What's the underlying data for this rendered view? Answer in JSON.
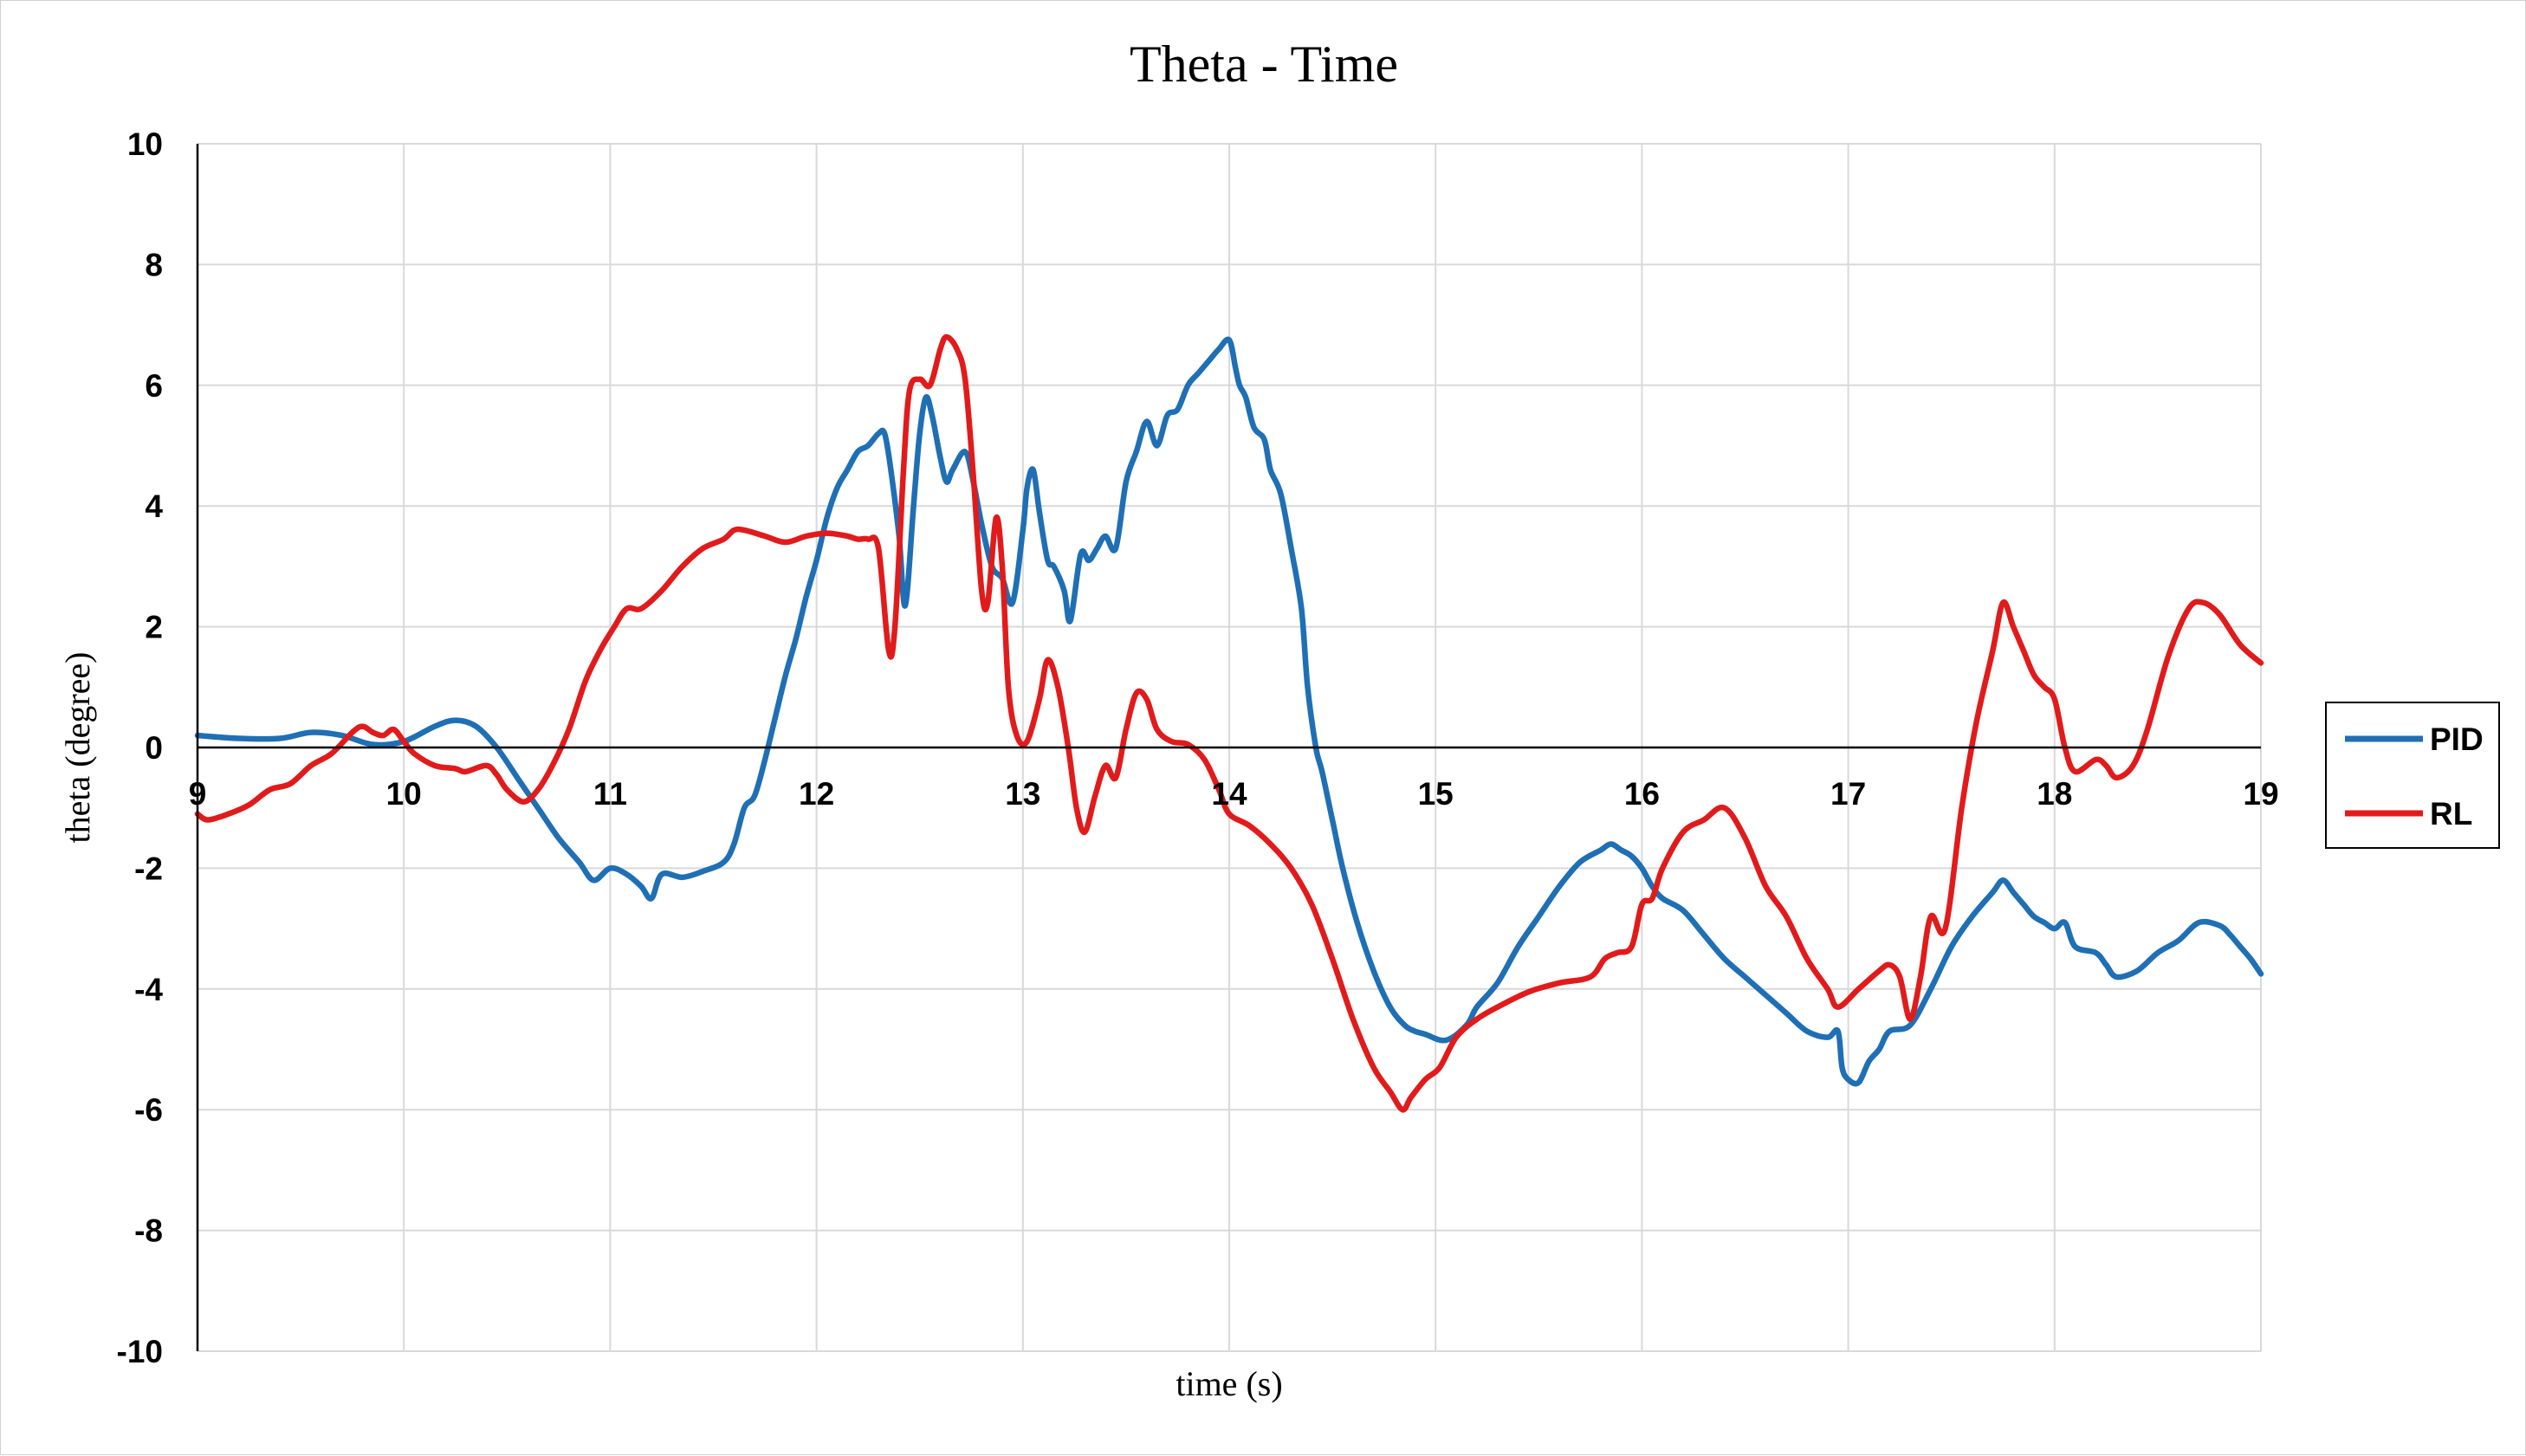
{
  "chart_data": {
    "type": "line",
    "title": "Theta - Time",
    "xlabel": "time (s)",
    "ylabel": "theta (degree)",
    "xlim": [
      9,
      19
    ],
    "ylim": [
      -10,
      10
    ],
    "x_ticks": [
      "9",
      "10",
      "11",
      "12",
      "13",
      "14",
      "15",
      "16",
      "17",
      "18",
      "19"
    ],
    "y_ticks": [
      "10",
      "8",
      "6",
      "4",
      "2",
      "0",
      "-2",
      "-4",
      "-6",
      "-8",
      "-10"
    ],
    "grid": true,
    "legend_position": "right",
    "series": [
      {
        "name": "PID",
        "color": "#1f6fb5",
        "points": [
          [
            9.0,
            0.2
          ],
          [
            9.2,
            0.15
          ],
          [
            9.4,
            0.15
          ],
          [
            9.55,
            0.25
          ],
          [
            9.7,
            0.2
          ],
          [
            9.85,
            0.05
          ],
          [
            10.0,
            0.1
          ],
          [
            10.15,
            0.35
          ],
          [
            10.25,
            0.45
          ],
          [
            10.35,
            0.35
          ],
          [
            10.45,
            0.0
          ],
          [
            10.55,
            -0.5
          ],
          [
            10.65,
            -1.0
          ],
          [
            10.75,
            -1.5
          ],
          [
            10.85,
            -1.9
          ],
          [
            10.92,
            -2.2
          ],
          [
            11.0,
            -2.0
          ],
          [
            11.08,
            -2.1
          ],
          [
            11.15,
            -2.3
          ],
          [
            11.2,
            -2.5
          ],
          [
            11.25,
            -2.1
          ],
          [
            11.35,
            -2.15
          ],
          [
            11.45,
            -2.05
          ],
          [
            11.55,
            -1.9
          ],
          [
            11.6,
            -1.6
          ],
          [
            11.65,
            -1.0
          ],
          [
            11.7,
            -0.8
          ],
          [
            11.75,
            -0.2
          ],
          [
            11.8,
            0.5
          ],
          [
            11.85,
            1.2
          ],
          [
            11.9,
            1.8
          ],
          [
            11.95,
            2.5
          ],
          [
            12.0,
            3.1
          ],
          [
            12.05,
            3.8
          ],
          [
            12.1,
            4.3
          ],
          [
            12.15,
            4.6
          ],
          [
            12.2,
            4.9
          ],
          [
            12.25,
            5.0
          ],
          [
            12.3,
            5.2
          ],
          [
            12.33,
            5.2
          ],
          [
            12.36,
            4.6
          ],
          [
            12.4,
            3.5
          ],
          [
            12.43,
            2.35
          ],
          [
            12.47,
            4.0
          ],
          [
            12.5,
            5.2
          ],
          [
            12.53,
            5.8
          ],
          [
            12.56,
            5.5
          ],
          [
            12.6,
            4.8
          ],
          [
            12.63,
            4.4
          ],
          [
            12.66,
            4.6
          ],
          [
            12.72,
            4.9
          ],
          [
            12.76,
            4.4
          ],
          [
            12.8,
            3.7
          ],
          [
            12.85,
            3.0
          ],
          [
            12.9,
            2.8
          ],
          [
            12.95,
            2.4
          ],
          [
            13.0,
            3.6
          ],
          [
            13.02,
            4.3
          ],
          [
            13.05,
            4.6
          ],
          [
            13.08,
            3.9
          ],
          [
            13.12,
            3.1
          ],
          [
            13.15,
            3.0
          ],
          [
            13.2,
            2.6
          ],
          [
            13.23,
            2.1
          ],
          [
            13.28,
            3.2
          ],
          [
            13.32,
            3.1
          ],
          [
            13.36,
            3.3
          ],
          [
            13.4,
            3.5
          ],
          [
            13.45,
            3.3
          ],
          [
            13.5,
            4.4
          ],
          [
            13.55,
            4.9
          ],
          [
            13.6,
            5.4
          ],
          [
            13.65,
            5.0
          ],
          [
            13.7,
            5.5
          ],
          [
            13.75,
            5.6
          ],
          [
            13.8,
            6.0
          ],
          [
            13.85,
            6.2
          ],
          [
            13.9,
            6.4
          ],
          [
            13.95,
            6.6
          ],
          [
            14.0,
            6.75
          ],
          [
            14.03,
            6.3
          ],
          [
            14.05,
            6.0
          ],
          [
            14.08,
            5.8
          ],
          [
            14.12,
            5.3
          ],
          [
            14.17,
            5.1
          ],
          [
            14.2,
            4.6
          ],
          [
            14.25,
            4.2
          ],
          [
            14.3,
            3.3
          ],
          [
            14.35,
            2.3
          ],
          [
            14.38,
            1.0
          ],
          [
            14.42,
            0.0
          ],
          [
            14.45,
            -0.4
          ],
          [
            14.5,
            -1.2
          ],
          [
            14.55,
            -2.0
          ],
          [
            14.62,
            -2.9
          ],
          [
            14.7,
            -3.7
          ],
          [
            14.78,
            -4.3
          ],
          [
            14.85,
            -4.6
          ],
          [
            14.9,
            -4.7
          ],
          [
            14.95,
            -4.75
          ],
          [
            15.05,
            -4.85
          ],
          [
            15.15,
            -4.6
          ],
          [
            15.2,
            -4.3
          ],
          [
            15.3,
            -3.9
          ],
          [
            15.4,
            -3.3
          ],
          [
            15.5,
            -2.8
          ],
          [
            15.6,
            -2.3
          ],
          [
            15.7,
            -1.9
          ],
          [
            15.8,
            -1.7
          ],
          [
            15.85,
            -1.6
          ],
          [
            15.9,
            -1.7
          ],
          [
            15.95,
            -1.8
          ],
          [
            16.0,
            -2.0
          ],
          [
            16.05,
            -2.3
          ],
          [
            16.1,
            -2.5
          ],
          [
            16.2,
            -2.7
          ],
          [
            16.3,
            -3.1
          ],
          [
            16.4,
            -3.5
          ],
          [
            16.5,
            -3.8
          ],
          [
            16.6,
            -4.1
          ],
          [
            16.7,
            -4.4
          ],
          [
            16.8,
            -4.7
          ],
          [
            16.9,
            -4.8
          ],
          [
            16.95,
            -4.7
          ],
          [
            16.97,
            -5.3
          ],
          [
            17.0,
            -5.5
          ],
          [
            17.05,
            -5.55
          ],
          [
            17.1,
            -5.2
          ],
          [
            17.15,
            -5.0
          ],
          [
            17.2,
            -4.7
          ],
          [
            17.3,
            -4.6
          ],
          [
            17.4,
            -4.0
          ],
          [
            17.5,
            -3.3
          ],
          [
            17.6,
            -2.8
          ],
          [
            17.7,
            -2.4
          ],
          [
            17.75,
            -2.2
          ],
          [
            17.8,
            -2.4
          ],
          [
            17.85,
            -2.6
          ],
          [
            17.9,
            -2.8
          ],
          [
            17.95,
            -2.9
          ],
          [
            18.0,
            -3.0
          ],
          [
            18.05,
            -2.9
          ],
          [
            18.1,
            -3.3
          ],
          [
            18.2,
            -3.4
          ],
          [
            18.25,
            -3.6
          ],
          [
            18.3,
            -3.8
          ],
          [
            18.4,
            -3.7
          ],
          [
            18.5,
            -3.4
          ],
          [
            18.6,
            -3.2
          ],
          [
            18.7,
            -2.9
          ],
          [
            18.8,
            -2.95
          ],
          [
            18.85,
            -3.1
          ],
          [
            18.9,
            -3.3
          ],
          [
            18.95,
            -3.5
          ],
          [
            19.0,
            -3.75
          ]
        ]
      },
      {
        "name": "RL",
        "color": "#e11b1b",
        "points": [
          [
            9.0,
            -1.1
          ],
          [
            9.05,
            -1.2
          ],
          [
            9.15,
            -1.1
          ],
          [
            9.25,
            -0.95
          ],
          [
            9.35,
            -0.7
          ],
          [
            9.45,
            -0.6
          ],
          [
            9.55,
            -0.3
          ],
          [
            9.65,
            -0.1
          ],
          [
            9.75,
            0.25
          ],
          [
            9.8,
            0.35
          ],
          [
            9.85,
            0.25
          ],
          [
            9.9,
            0.2
          ],
          [
            9.95,
            0.3
          ],
          [
            10.0,
            0.1
          ],
          [
            10.05,
            -0.1
          ],
          [
            10.15,
            -0.3
          ],
          [
            10.25,
            -0.35
          ],
          [
            10.3,
            -0.4
          ],
          [
            10.4,
            -0.3
          ],
          [
            10.45,
            -0.45
          ],
          [
            10.5,
            -0.7
          ],
          [
            10.58,
            -0.9
          ],
          [
            10.65,
            -0.7
          ],
          [
            10.72,
            -0.3
          ],
          [
            10.8,
            0.3
          ],
          [
            10.88,
            1.1
          ],
          [
            10.95,
            1.6
          ],
          [
            11.02,
            2.0
          ],
          [
            11.08,
            2.3
          ],
          [
            11.15,
            2.3
          ],
          [
            11.25,
            2.6
          ],
          [
            11.35,
            3.0
          ],
          [
            11.45,
            3.3
          ],
          [
            11.55,
            3.45
          ],
          [
            11.6,
            3.6
          ],
          [
            11.65,
            3.6
          ],
          [
            11.75,
            3.5
          ],
          [
            11.85,
            3.4
          ],
          [
            11.95,
            3.5
          ],
          [
            12.05,
            3.55
          ],
          [
            12.15,
            3.5
          ],
          [
            12.2,
            3.45
          ],
          [
            12.25,
            3.45
          ],
          [
            12.3,
            3.3
          ],
          [
            12.35,
            1.6
          ],
          [
            12.38,
            2.0
          ],
          [
            12.42,
            4.5
          ],
          [
            12.45,
            5.9
          ],
          [
            12.5,
            6.1
          ],
          [
            12.55,
            6.0
          ],
          [
            12.6,
            6.6
          ],
          [
            12.63,
            6.8
          ],
          [
            12.68,
            6.6
          ],
          [
            12.72,
            6.1
          ],
          [
            12.76,
            4.5
          ],
          [
            12.8,
            2.6
          ],
          [
            12.83,
            2.4
          ],
          [
            12.87,
            3.8
          ],
          [
            12.9,
            3.0
          ],
          [
            12.93,
            1.0
          ],
          [
            12.97,
            0.2
          ],
          [
            13.02,
            0.1
          ],
          [
            13.08,
            0.8
          ],
          [
            13.12,
            1.45
          ],
          [
            13.17,
            1.0
          ],
          [
            13.22,
            0.0
          ],
          [
            13.26,
            -1.0
          ],
          [
            13.3,
            -1.4
          ],
          [
            13.35,
            -0.8
          ],
          [
            13.4,
            -0.3
          ],
          [
            13.45,
            -0.5
          ],
          [
            13.5,
            0.3
          ],
          [
            13.55,
            0.9
          ],
          [
            13.6,
            0.8
          ],
          [
            13.65,
            0.3
          ],
          [
            13.72,
            0.1
          ],
          [
            13.8,
            0.05
          ],
          [
            13.88,
            -0.2
          ],
          [
            13.95,
            -0.7
          ],
          [
            14.0,
            -1.1
          ],
          [
            14.1,
            -1.3
          ],
          [
            14.2,
            -1.6
          ],
          [
            14.3,
            -2.0
          ],
          [
            14.4,
            -2.6
          ],
          [
            14.5,
            -3.5
          ],
          [
            14.6,
            -4.5
          ],
          [
            14.7,
            -5.3
          ],
          [
            14.78,
            -5.7
          ],
          [
            14.84,
            -6.0
          ],
          [
            14.88,
            -5.8
          ],
          [
            14.95,
            -5.5
          ],
          [
            15.02,
            -5.3
          ],
          [
            15.1,
            -4.8
          ],
          [
            15.2,
            -4.5
          ],
          [
            15.3,
            -4.3
          ],
          [
            15.45,
            -4.05
          ],
          [
            15.6,
            -3.9
          ],
          [
            15.75,
            -3.8
          ],
          [
            15.82,
            -3.5
          ],
          [
            15.88,
            -3.4
          ],
          [
            15.95,
            -3.3
          ],
          [
            16.0,
            -2.6
          ],
          [
            16.05,
            -2.5
          ],
          [
            16.1,
            -2.0
          ],
          [
            16.2,
            -1.4
          ],
          [
            16.3,
            -1.2
          ],
          [
            16.4,
            -1.0
          ],
          [
            16.5,
            -1.5
          ],
          [
            16.6,
            -2.3
          ],
          [
            16.7,
            -2.8
          ],
          [
            16.8,
            -3.5
          ],
          [
            16.9,
            -4.0
          ],
          [
            16.95,
            -4.3
          ],
          [
            17.05,
            -4.0
          ],
          [
            17.15,
            -3.7
          ],
          [
            17.2,
            -3.6
          ],
          [
            17.25,
            -3.8
          ],
          [
            17.3,
            -4.5
          ],
          [
            17.35,
            -3.8
          ],
          [
            17.4,
            -2.8
          ],
          [
            17.47,
            -3.0
          ],
          [
            17.55,
            -1.0
          ],
          [
            17.62,
            0.4
          ],
          [
            17.7,
            1.6
          ],
          [
            17.75,
            2.4
          ],
          [
            17.8,
            2.0
          ],
          [
            17.85,
            1.6
          ],
          [
            17.9,
            1.2
          ],
          [
            17.95,
            1.0
          ],
          [
            18.0,
            0.8
          ],
          [
            18.05,
            0.0
          ],
          [
            18.1,
            -0.4
          ],
          [
            18.2,
            -0.2
          ],
          [
            18.25,
            -0.3
          ],
          [
            18.3,
            -0.5
          ],
          [
            18.38,
            -0.3
          ],
          [
            18.45,
            0.3
          ],
          [
            18.55,
            1.5
          ],
          [
            18.65,
            2.3
          ],
          [
            18.72,
            2.4
          ],
          [
            18.8,
            2.2
          ],
          [
            18.9,
            1.7
          ],
          [
            19.0,
            1.4
          ]
        ]
      }
    ]
  }
}
